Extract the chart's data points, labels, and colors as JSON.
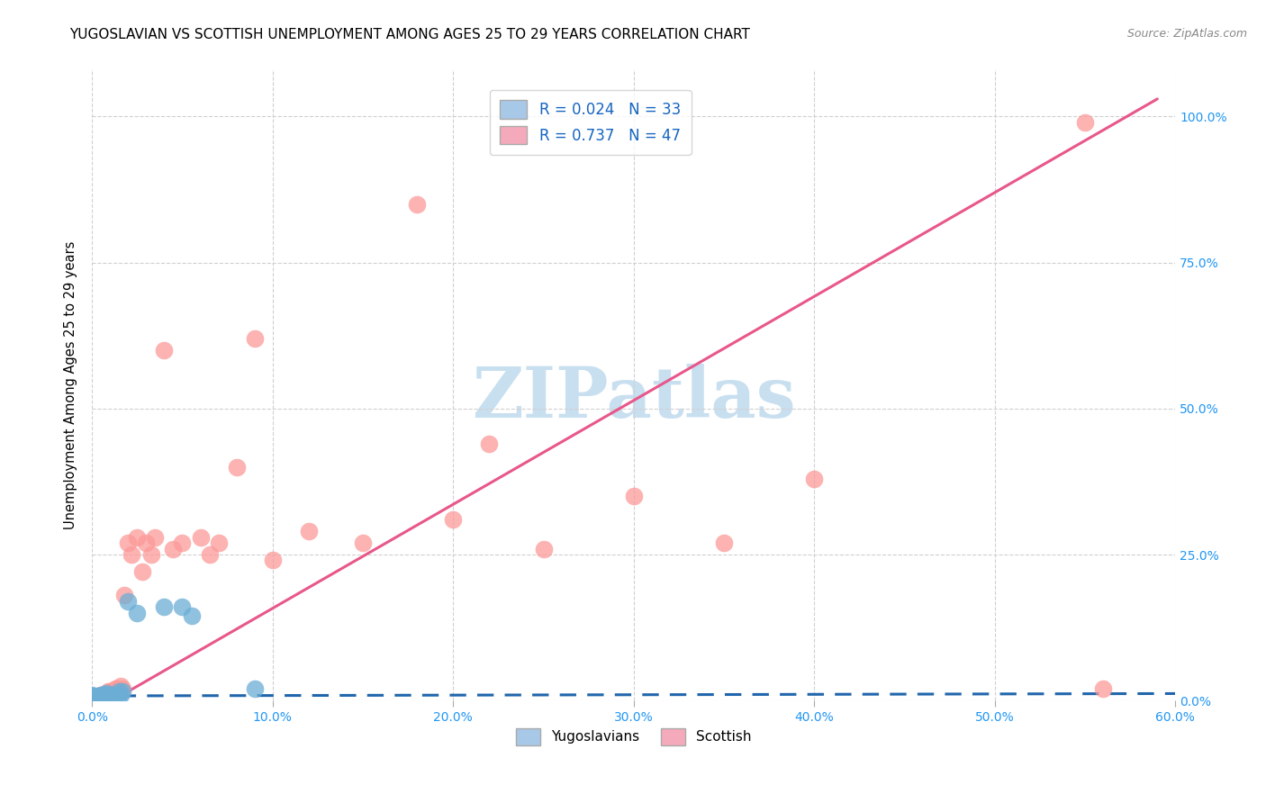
{
  "title": "YUGOSLAVIAN VS SCOTTISH UNEMPLOYMENT AMONG AGES 25 TO 29 YEARS CORRELATION CHART",
  "source": "Source: ZipAtlas.com",
  "xlim": [
    0.0,
    0.6
  ],
  "ylim": [
    0.0,
    1.08
  ],
  "ytick_vals": [
    0.0,
    0.25,
    0.5,
    0.75,
    1.0
  ],
  "ytick_labels": [
    "0.0%",
    "25.0%",
    "50.0%",
    "75.0%",
    "100.0%"
  ],
  "xtick_vals": [
    0.0,
    0.1,
    0.2,
    0.3,
    0.4,
    0.5,
    0.6
  ],
  "xtick_labels": [
    "0.0%",
    "10.0%",
    "20.0%",
    "30.0%",
    "40.0%",
    "50.0%",
    "60.0%"
  ],
  "yug_scatter_x": [
    0.0,
    0.0,
    0.0,
    0.0,
    0.002,
    0.002,
    0.003,
    0.004,
    0.004,
    0.005,
    0.005,
    0.005,
    0.006,
    0.006,
    0.007,
    0.007,
    0.008,
    0.008,
    0.009,
    0.01,
    0.01,
    0.012,
    0.013,
    0.015,
    0.015,
    0.016,
    0.017,
    0.02,
    0.025,
    0.04,
    0.05,
    0.055,
    0.09
  ],
  "yug_scatter_y": [
    0.0,
    0.005,
    0.008,
    0.01,
    0.0,
    0.005,
    0.005,
    0.0,
    0.005,
    0.005,
    0.008,
    0.01,
    0.005,
    0.01,
    0.005,
    0.01,
    0.005,
    0.012,
    0.01,
    0.005,
    0.01,
    0.01,
    0.01,
    0.01,
    0.015,
    0.01,
    0.015,
    0.17,
    0.15,
    0.16,
    0.16,
    0.145,
    0.02
  ],
  "scot_scatter_x": [
    0.0,
    0.0,
    0.002,
    0.003,
    0.004,
    0.005,
    0.005,
    0.006,
    0.007,
    0.008,
    0.009,
    0.01,
    0.01,
    0.012,
    0.013,
    0.014,
    0.015,
    0.016,
    0.017,
    0.018,
    0.02,
    0.022,
    0.025,
    0.028,
    0.03,
    0.033,
    0.035,
    0.04,
    0.045,
    0.05,
    0.06,
    0.065,
    0.07,
    0.08,
    0.09,
    0.1,
    0.12,
    0.15,
    0.18,
    0.2,
    0.22,
    0.25,
    0.3,
    0.35,
    0.4,
    0.55,
    0.56
  ],
  "scot_scatter_y": [
    0.005,
    0.008,
    0.005,
    0.008,
    0.005,
    0.005,
    0.01,
    0.008,
    0.01,
    0.01,
    0.015,
    0.01,
    0.015,
    0.015,
    0.02,
    0.02,
    0.015,
    0.025,
    0.02,
    0.18,
    0.27,
    0.25,
    0.28,
    0.22,
    0.27,
    0.25,
    0.28,
    0.6,
    0.26,
    0.27,
    0.28,
    0.25,
    0.27,
    0.4,
    0.62,
    0.24,
    0.29,
    0.27,
    0.85,
    0.31,
    0.44,
    0.26,
    0.35,
    0.27,
    0.38,
    0.99,
    0.02
  ],
  "scot_line_x": [
    0.0,
    0.59
  ],
  "scot_line_y": [
    -0.02,
    1.03
  ],
  "yug_line_x": [
    0.0,
    0.6
  ],
  "yug_line_y": [
    0.008,
    0.012
  ],
  "yug_color": "#6baed6",
  "yug_edge_color": "#3182bd",
  "scot_color": "#fb9a99",
  "scot_edge_color": "#e31a1c",
  "yug_line_color": "#2166ac",
  "scot_line_color": "#e8578a",
  "background_color": "#ffffff",
  "watermark_text": "ZIPatlas",
  "watermark_color": "#c8dff0",
  "title_fontsize": 11,
  "axis_color": "#2196f3",
  "ylabel": "Unemployment Among Ages 25 to 29 years",
  "legend1_labels": [
    "R = 0.024   N = 33",
    "R = 0.737   N = 47"
  ],
  "legend1_colors": [
    "#a8c8e8",
    "#f4aaba"
  ],
  "legend2_labels": [
    "Yugoslavians",
    "Scottish"
  ],
  "legend2_colors": [
    "#a8c8e8",
    "#f4aaba"
  ]
}
